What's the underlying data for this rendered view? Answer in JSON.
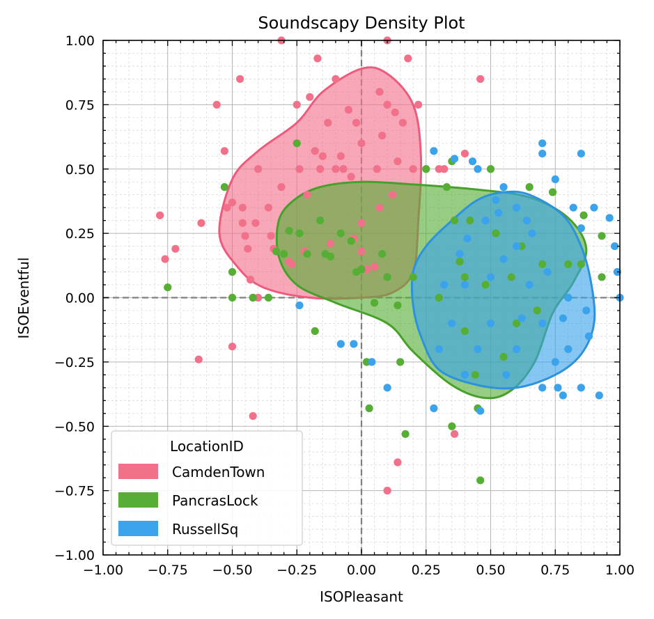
{
  "chart_data": {
    "type": "scatter",
    "title": "Soundscapy Density Plot",
    "xlabel": "ISOPleasant",
    "ylabel": "ISOEventful",
    "xlim": [
      -1.0,
      1.0
    ],
    "ylim": [
      -1.0,
      1.0
    ],
    "x_ticks": [
      "−1.00",
      "−0.75",
      "−0.50",
      "−0.25",
      "0.00",
      "0.25",
      "0.50",
      "0.75",
      "1.00"
    ],
    "y_ticks": [
      "−1.00",
      "−0.75",
      "−0.50",
      "−0.25",
      "0.00",
      "0.25",
      "0.50",
      "0.75",
      "1.00"
    ],
    "grid": true,
    "legend": {
      "title": "LocationID",
      "position": "lower-left",
      "entries": [
        "CamdenTown",
        "PancrasLock",
        "RussellSq"
      ]
    },
    "series": [
      {
        "name": "CamdenTown",
        "color": "#f2718a",
        "density_contour": [
          [
            -0.55,
            0.25
          ],
          [
            -0.5,
            0.46
          ],
          [
            -0.4,
            0.57
          ],
          [
            -0.25,
            0.68
          ],
          [
            -0.15,
            0.8
          ],
          [
            0.0,
            0.89
          ],
          [
            0.1,
            0.87
          ],
          [
            0.2,
            0.75
          ],
          [
            0.23,
            0.55
          ],
          [
            0.22,
            0.3
          ],
          [
            0.2,
            0.1
          ],
          [
            0.12,
            0.02
          ],
          [
            0.0,
            0.0
          ],
          [
            -0.2,
            0.0
          ],
          [
            -0.38,
            0.04
          ],
          [
            -0.48,
            0.12
          ]
        ],
        "points": [
          [
            -0.78,
            0.32
          ],
          [
            -0.76,
            0.15
          ],
          [
            -0.72,
            0.19
          ],
          [
            -0.63,
            -0.24
          ],
          [
            -0.62,
            0.29
          ],
          [
            -0.56,
            0.75
          ],
          [
            -0.53,
            0.57
          ],
          [
            -0.52,
            0.35
          ],
          [
            -0.5,
            0.37
          ],
          [
            -0.5,
            -0.19
          ],
          [
            -0.47,
            0.85
          ],
          [
            -0.46,
            0.35
          ],
          [
            -0.46,
            0.29
          ],
          [
            -0.45,
            0.24
          ],
          [
            -0.44,
            0.19
          ],
          [
            -0.43,
            0.07
          ],
          [
            -0.42,
            0.0
          ],
          [
            -0.42,
            -0.46
          ],
          [
            -0.41,
            0.29
          ],
          [
            -0.4,
            0.5
          ],
          [
            -0.4,
            0.0
          ],
          [
            -0.36,
            0.35
          ],
          [
            -0.35,
            0.24
          ],
          [
            -0.34,
            0.19
          ],
          [
            -0.31,
            1.0
          ],
          [
            -0.31,
            0.43
          ],
          [
            -0.28,
            0.14
          ],
          [
            -0.27,
            0.13
          ],
          [
            -0.25,
            0.75
          ],
          [
            -0.24,
            0.5
          ],
          [
            -0.22,
            0.18
          ],
          [
            -0.21,
            0.4
          ],
          [
            -0.2,
            0.78
          ],
          [
            -0.18,
            0.57
          ],
          [
            -0.17,
            0.93
          ],
          [
            -0.16,
            0.5
          ],
          [
            -0.15,
            0.55
          ],
          [
            -0.13,
            0.68
          ],
          [
            -0.12,
            0.21
          ],
          [
            -0.1,
            0.85
          ],
          [
            -0.1,
            0.5
          ],
          [
            -0.08,
            0.55
          ],
          [
            -0.07,
            0.5
          ],
          [
            -0.05,
            0.73
          ],
          [
            -0.04,
            0.47
          ],
          [
            -0.03,
            0.23
          ],
          [
            -0.02,
            0.68
          ],
          [
            0.0,
            0.6
          ],
          [
            0.0,
            0.29
          ],
          [
            0.0,
            0.18
          ],
          [
            0.02,
            0.11
          ],
          [
            0.05,
            0.12
          ],
          [
            0.06,
            0.5
          ],
          [
            0.07,
            0.35
          ],
          [
            0.07,
            0.8
          ],
          [
            0.08,
            0.63
          ],
          [
            0.1,
            1.0
          ],
          [
            0.1,
            0.75
          ],
          [
            0.1,
            -0.75
          ],
          [
            0.12,
            0.4
          ],
          [
            0.13,
            0.72
          ],
          [
            0.14,
            0.53
          ],
          [
            0.14,
            -0.64
          ],
          [
            0.16,
            0.68
          ],
          [
            0.18,
            0.93
          ],
          [
            0.2,
            0.5
          ],
          [
            0.22,
            0.75
          ],
          [
            0.3,
            0.5
          ],
          [
            0.32,
            0.5
          ],
          [
            0.36,
            -0.53
          ],
          [
            0.4,
            0.56
          ],
          [
            0.46,
            0.85
          ]
        ]
      },
      {
        "name": "PancrasLock",
        "color": "#56ae35",
        "density_contour": [
          [
            -0.32,
            0.3
          ],
          [
            -0.26,
            0.38
          ],
          [
            -0.16,
            0.43
          ],
          [
            0.0,
            0.45
          ],
          [
            0.2,
            0.44
          ],
          [
            0.45,
            0.42
          ],
          [
            0.65,
            0.39
          ],
          [
            0.8,
            0.31
          ],
          [
            0.87,
            0.19
          ],
          [
            0.82,
            0.06
          ],
          [
            0.74,
            -0.06
          ],
          [
            0.67,
            -0.25
          ],
          [
            0.58,
            -0.36
          ],
          [
            0.48,
            -0.39
          ],
          [
            0.35,
            -0.34
          ],
          [
            0.2,
            -0.21
          ],
          [
            0.1,
            -0.1
          ],
          [
            -0.1,
            -0.02
          ],
          [
            -0.25,
            0.05
          ],
          [
            -0.32,
            0.16
          ]
        ],
        "points": [
          [
            -0.75,
            0.04
          ],
          [
            -0.53,
            0.43
          ],
          [
            -0.5,
            0.1
          ],
          [
            -0.5,
            0.0
          ],
          [
            -0.42,
            0.0
          ],
          [
            -0.36,
            0.0
          ],
          [
            -0.33,
            0.18
          ],
          [
            -0.3,
            0.17
          ],
          [
            -0.28,
            0.26
          ],
          [
            -0.25,
            0.6
          ],
          [
            -0.24,
            0.25
          ],
          [
            -0.21,
            0.17
          ],
          [
            -0.18,
            -0.13
          ],
          [
            -0.16,
            0.3
          ],
          [
            -0.14,
            0.17
          ],
          [
            -0.12,
            0.16
          ],
          [
            -0.08,
            0.25
          ],
          [
            -0.04,
            0.22
          ],
          [
            -0.02,
            0.1
          ],
          [
            0.0,
            0.11
          ],
          [
            0.02,
            -0.25
          ],
          [
            0.03,
            -0.43
          ],
          [
            0.05,
            -0.02
          ],
          [
            0.08,
            0.17
          ],
          [
            0.1,
            0.08
          ],
          [
            0.14,
            -0.03
          ],
          [
            0.15,
            -0.25
          ],
          [
            0.17,
            -0.53
          ],
          [
            0.2,
            0.08
          ],
          [
            0.25,
            0.5
          ],
          [
            0.33,
            0.43
          ],
          [
            0.35,
            0.53
          ],
          [
            0.36,
            0.3
          ],
          [
            0.38,
            0.14
          ],
          [
            0.4,
            0.08
          ],
          [
            0.42,
            0.3
          ],
          [
            0.45,
            -0.43
          ],
          [
            0.46,
            -0.71
          ],
          [
            0.5,
            0.5
          ],
          [
            0.52,
            0.25
          ],
          [
            0.55,
            -0.23
          ],
          [
            0.58,
            0.08
          ],
          [
            0.6,
            -0.1
          ],
          [
            0.62,
            0.2
          ],
          [
            0.65,
            0.43
          ],
          [
            0.68,
            -0.05
          ],
          [
            0.7,
            0.13
          ],
          [
            0.74,
            0.41
          ],
          [
            0.8,
            0.13
          ],
          [
            0.85,
            0.13
          ],
          [
            0.86,
            0.32
          ],
          [
            0.93,
            0.24
          ],
          [
            0.93,
            0.08
          ],
          [
            0.35,
            -0.5
          ],
          [
            0.4,
            -0.13
          ],
          [
            0.44,
            -0.3
          ],
          [
            0.3,
            0.0
          ],
          [
            0.48,
            0.05
          ]
        ]
      },
      {
        "name": "RussellSq",
        "color": "#3ba3ec",
        "density_contour": [
          [
            0.2,
            0.1
          ],
          [
            0.25,
            0.2
          ],
          [
            0.35,
            0.3
          ],
          [
            0.45,
            0.38
          ],
          [
            0.55,
            0.41
          ],
          [
            0.65,
            0.4
          ],
          [
            0.78,
            0.32
          ],
          [
            0.85,
            0.2
          ],
          [
            0.89,
            0.05
          ],
          [
            0.9,
            -0.1
          ],
          [
            0.85,
            -0.22
          ],
          [
            0.75,
            -0.3
          ],
          [
            0.6,
            -0.35
          ],
          [
            0.45,
            -0.34
          ],
          [
            0.3,
            -0.28
          ],
          [
            0.23,
            -0.15
          ],
          [
            0.2,
            -0.03
          ]
        ],
        "points": [
          [
            -0.24,
            -0.03
          ],
          [
            -0.08,
            -0.18
          ],
          [
            -0.03,
            -0.18
          ],
          [
            0.04,
            -0.25
          ],
          [
            0.1,
            -0.35
          ],
          [
            0.28,
            0.57
          ],
          [
            0.28,
            -0.43
          ],
          [
            0.32,
            0.05
          ],
          [
            0.36,
            0.54
          ],
          [
            0.38,
            0.17
          ],
          [
            0.4,
            0.05
          ],
          [
            0.41,
            0.23
          ],
          [
            0.43,
            0.53
          ],
          [
            0.45,
            0.5
          ],
          [
            0.46,
            -0.44
          ],
          [
            0.5,
            0.08
          ],
          [
            0.53,
            0.33
          ],
          [
            0.55,
            0.43
          ],
          [
            0.56,
            -0.3
          ],
          [
            0.6,
            0.2
          ],
          [
            0.62,
            -0.08
          ],
          [
            0.64,
            0.3
          ],
          [
            0.66,
            0.25
          ],
          [
            0.7,
            0.6
          ],
          [
            0.7,
            0.56
          ],
          [
            0.7,
            -0.35
          ],
          [
            0.72,
            0.1
          ],
          [
            0.75,
            0.46
          ],
          [
            0.76,
            -0.35
          ],
          [
            0.78,
            -0.08
          ],
          [
            0.78,
            -0.38
          ],
          [
            0.8,
            0.0
          ],
          [
            0.82,
            0.35
          ],
          [
            0.85,
            0.56
          ],
          [
            0.85,
            0.27
          ],
          [
            0.85,
            -0.35
          ],
          [
            0.9,
            0.35
          ],
          [
            0.92,
            -0.38
          ],
          [
            0.96,
            0.31
          ],
          [
            0.98,
            0.2
          ],
          [
            0.99,
            0.1
          ],
          [
            1.0,
            0.0
          ],
          [
            0.87,
            -0.05
          ],
          [
            0.88,
            -0.15
          ],
          [
            0.8,
            -0.2
          ],
          [
            0.75,
            -0.25
          ],
          [
            0.6,
            -0.2
          ],
          [
            0.5,
            -0.1
          ],
          [
            0.45,
            -0.2
          ],
          [
            0.4,
            -0.3
          ],
          [
            0.35,
            -0.1
          ],
          [
            0.3,
            -0.2
          ],
          [
            0.55,
            0.15
          ],
          [
            0.65,
            0.05
          ],
          [
            0.7,
            -0.1
          ],
          [
            0.48,
            0.3
          ],
          [
            0.52,
            0.38
          ],
          [
            0.6,
            0.35
          ]
        ]
      }
    ]
  }
}
